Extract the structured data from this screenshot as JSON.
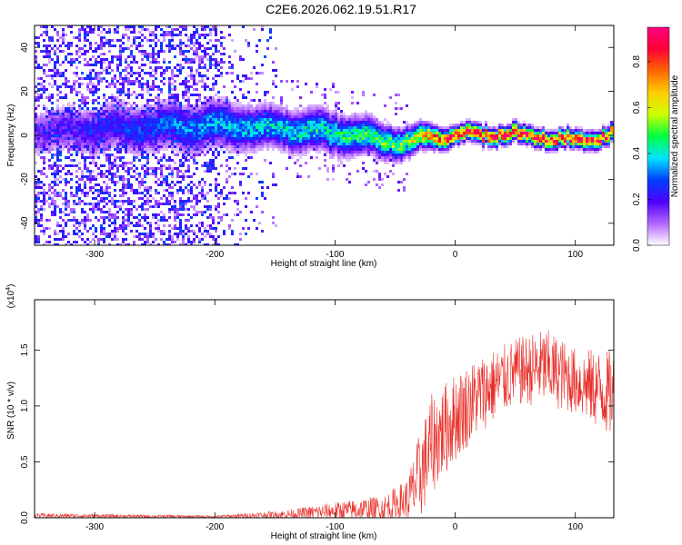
{
  "title": "C2E6.2026.062.19.51.R17",
  "chart_data": [
    {
      "type": "heatmap",
      "xlabel": "Height of straight line (km)",
      "ylabel": "Frequency (Hz)",
      "xlim": [
        -350,
        132
      ],
      "ylim": [
        -50,
        50
      ],
      "xticks": [
        "-300",
        "-200",
        "-100",
        "0",
        "100"
      ],
      "yticks": [
        "-40",
        "-20",
        "0",
        "20",
        "40"
      ],
      "colorbar": {
        "label": "Normalized spectral amplitude",
        "range": [
          0,
          0.95
        ],
        "ticks": [
          "0.0",
          "0.2",
          "0.4",
          "0.6",
          "0.8"
        ],
        "colors": [
          "#ffffff",
          "#b366ff",
          "#4d00ff",
          "#0040ff",
          "#00e5ff",
          "#00ff40",
          "#ccff00",
          "#ffcc00",
          "#ff6600",
          "#ff0033",
          "#ff0080"
        ]
      },
      "noise_region_end_x": -150,
      "trend": [
        {
          "x": -350,
          "f": 3,
          "width": 8,
          "amp": 0.15
        },
        {
          "x": -200,
          "f": 5,
          "width": 8,
          "amp": 0.35
        },
        {
          "x": -150,
          "f": 4,
          "width": 7,
          "amp": 0.38
        },
        {
          "x": -100,
          "f": 2,
          "width": 7,
          "amp": 0.42
        },
        {
          "x": -70,
          "f": -1,
          "width": 6,
          "amp": 0.48
        },
        {
          "x": -40,
          "f": -3,
          "width": 5,
          "amp": 0.55
        },
        {
          "x": -20,
          "f": 0,
          "width": 4,
          "amp": 0.72
        },
        {
          "x": 0,
          "f": 1,
          "width": 3,
          "amp": 0.85
        },
        {
          "x": 40,
          "f": 1,
          "width": 3,
          "amp": 0.9
        },
        {
          "x": 70,
          "f": 0,
          "width": 3,
          "amp": 0.88
        },
        {
          "x": 100,
          "f": -2,
          "width": 3,
          "amp": 0.85
        },
        {
          "x": 132,
          "f": 1,
          "width": 3,
          "amp": 0.85
        }
      ]
    },
    {
      "type": "line",
      "xlabel": "Height of straight line (km)",
      "ylabel": "SNR (10 * v/v)",
      "scale_label": "(x10",
      "scale_exp": "4",
      "scale_close": ")",
      "xlim": [
        -350,
        132
      ],
      "ylim": [
        0,
        1.95
      ],
      "xticks": [
        "-300",
        "-200",
        "-100",
        "0",
        "100"
      ],
      "yticks": [
        "0.0",
        "0.5",
        "1.0",
        "1.5"
      ],
      "color": "#e8302a",
      "envelope": [
        {
          "x": -350,
          "mean": 0.02,
          "spread": 0.02
        },
        {
          "x": -200,
          "mean": 0.01,
          "spread": 0.01
        },
        {
          "x": -140,
          "mean": 0.03,
          "spread": 0.04
        },
        {
          "x": -100,
          "mean": 0.06,
          "spread": 0.08
        },
        {
          "x": -60,
          "mean": 0.08,
          "spread": 0.12
        },
        {
          "x": -40,
          "mean": 0.15,
          "spread": 0.2
        },
        {
          "x": -30,
          "mean": 0.35,
          "spread": 0.4
        },
        {
          "x": -20,
          "mean": 0.65,
          "spread": 0.45
        },
        {
          "x": 0,
          "mean": 0.9,
          "spread": 0.4
        },
        {
          "x": 20,
          "mean": 1.1,
          "spread": 0.35
        },
        {
          "x": 50,
          "mean": 1.3,
          "spread": 0.3
        },
        {
          "x": 75,
          "mean": 1.35,
          "spread": 0.35
        },
        {
          "x": 100,
          "mean": 1.22,
          "spread": 0.3
        },
        {
          "x": 132,
          "mean": 1.1,
          "spread": 0.4
        }
      ]
    }
  ]
}
